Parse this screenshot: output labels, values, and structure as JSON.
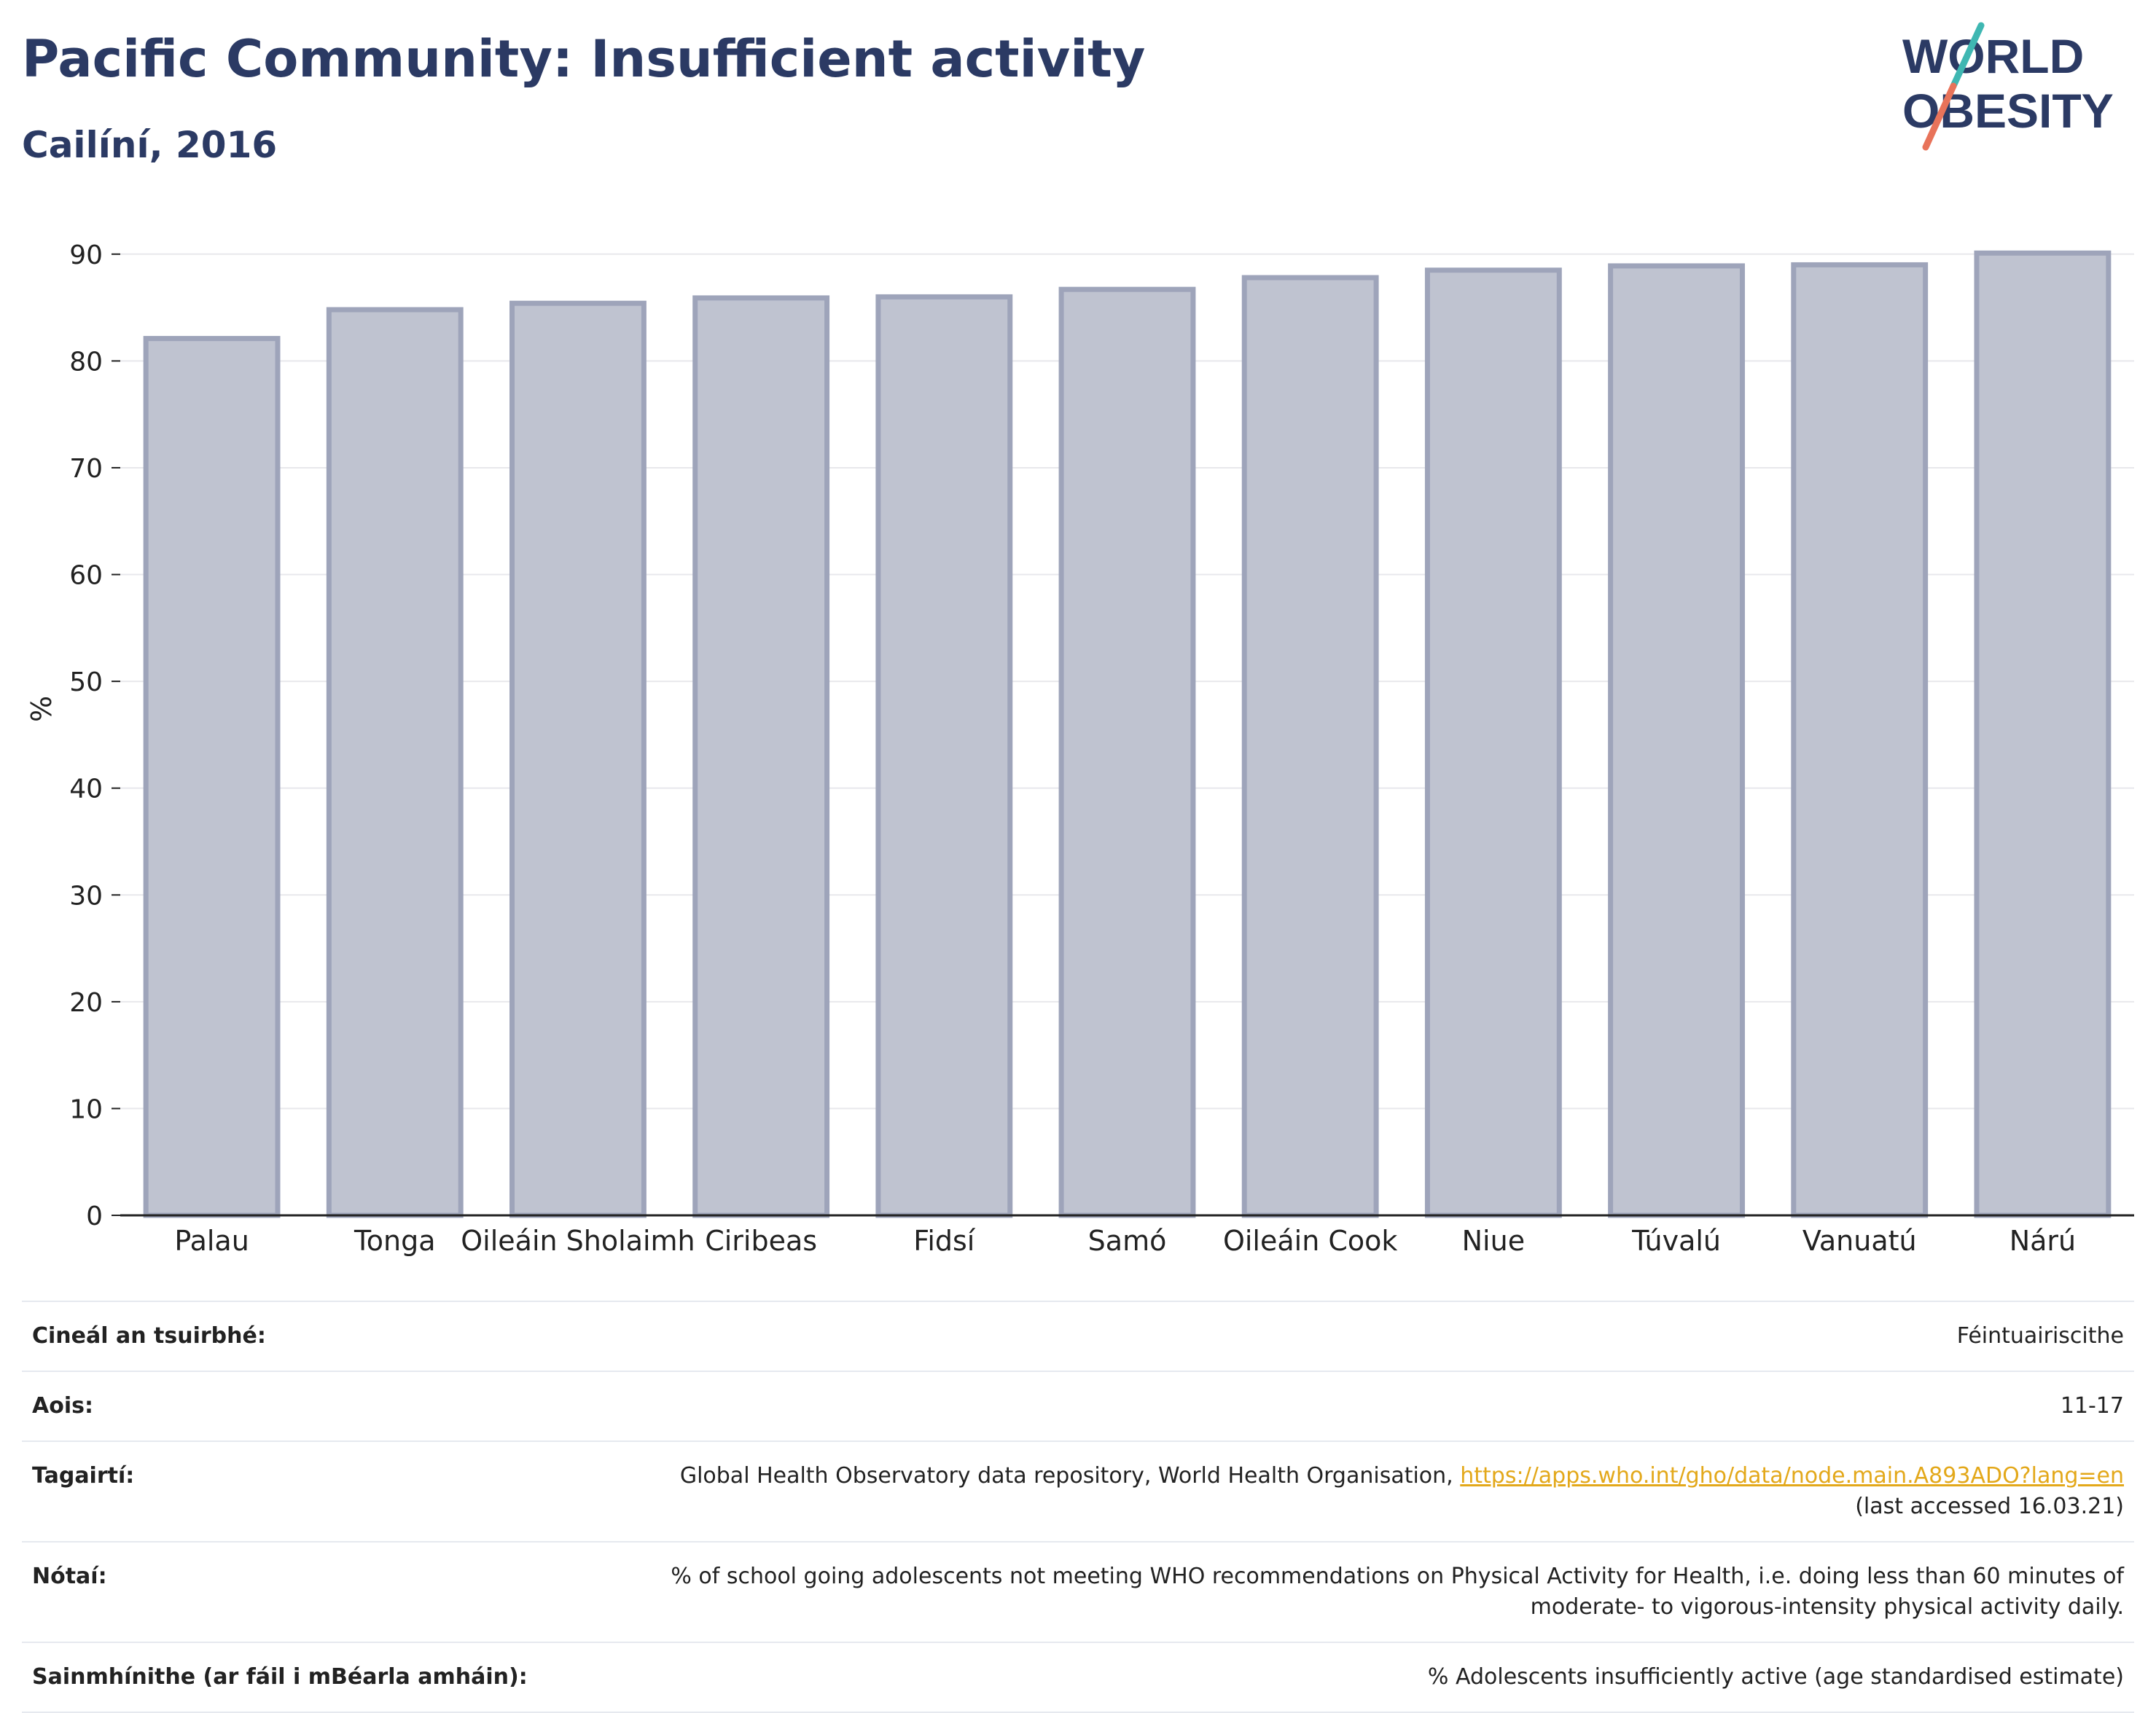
{
  "header": {
    "title": "Pacific Community: Insufficient activity",
    "subtitle": "Cailíní, 2016"
  },
  "logo": {
    "line1": "WORLD",
    "line2": "OBESITY",
    "accent_teal": "#3fb7b2",
    "accent_coral": "#e8735a",
    "text_color": "#2b3a64"
  },
  "chart_data": {
    "type": "bar",
    "categories": [
      "Palau",
      "Tonga",
      "Oileáin Sholaimh",
      "Ciribeas",
      "Fidsí",
      "Samó",
      "Oileáin Cook",
      "Niue",
      "Túvalú",
      "Vanuatú",
      "Nárú"
    ],
    "values": [
      82.1,
      84.8,
      85.4,
      85.9,
      86.0,
      86.7,
      87.8,
      88.5,
      88.9,
      89.0,
      90.1
    ],
    "ylabel": "%",
    "yticks": [
      0,
      10,
      20,
      30,
      40,
      50,
      60,
      70,
      80,
      90
    ],
    "ylim": [
      0,
      90.6
    ],
    "grid": true,
    "bar_fill": "#bfc3d0",
    "bar_stroke": "#9ea4ba"
  },
  "meta": {
    "survey_type": {
      "label": "Cineál an tsuirbhé:",
      "value": "Féintuairiscithe"
    },
    "age": {
      "label": "Aois:",
      "value": "11-17"
    },
    "references": {
      "label": "Tagairtí:",
      "text": "Global Health Observatory data repository, World Health Organisation,",
      "link": "https://apps.who.int/gho/data/node.main.A893ADO?lang=en",
      "accessed": "(last accessed 16.03.21)"
    },
    "notes": {
      "label": "Nótaí:",
      "line1": "% of school going adolescents not meeting WHO recommendations on Physical Activity for Health, i.e. doing less than 60 minutes of",
      "line2": "moderate- to vigorous-intensity physical activity daily."
    },
    "definitions": {
      "label": "Sainmhínithe (ar fáil i mBéarla amháin):",
      "value": "% Adolescents insufficiently active (age standardised estimate)"
    }
  }
}
